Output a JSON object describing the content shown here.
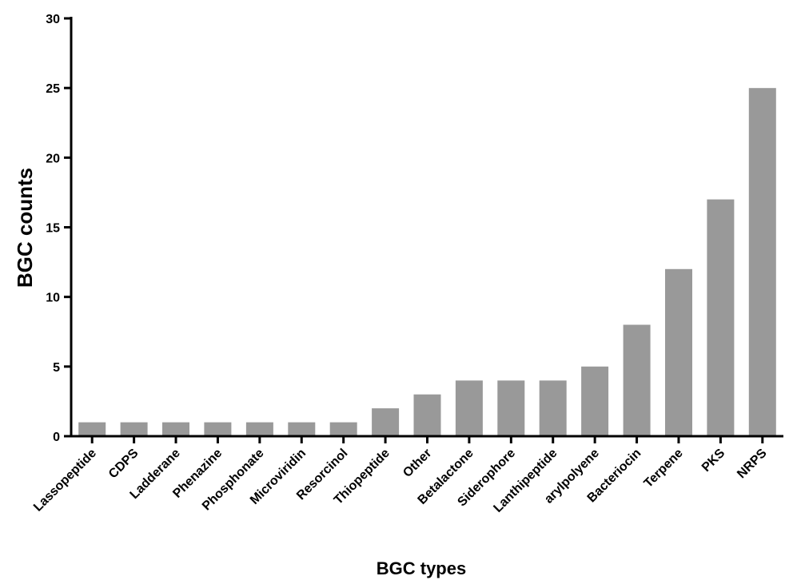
{
  "chart_data": {
    "type": "bar",
    "title": "",
    "xlabel": "BGC types",
    "ylabel": "BGC counts",
    "ylim": [
      0,
      30
    ],
    "yticks": [
      0,
      5,
      10,
      15,
      20,
      25,
      30
    ],
    "categories": [
      "Lassopeptide",
      "CDPS",
      "Ladderane",
      "Phenazine",
      "Phosphonate",
      "Microviridin",
      "Resorcinol",
      "Thiopeptide",
      "Other",
      "Betalactone",
      "Siderophore",
      "Lanthipeptide",
      "arylpolyene",
      "Bacteriocin",
      "Terpene",
      "PKS",
      "NRPS"
    ],
    "values": [
      1,
      1,
      1,
      1,
      1,
      1,
      1,
      2,
      3,
      4,
      4,
      4,
      5,
      8,
      12,
      17,
      25
    ],
    "bar_color": "#999999",
    "grid": false,
    "legend": "none"
  }
}
